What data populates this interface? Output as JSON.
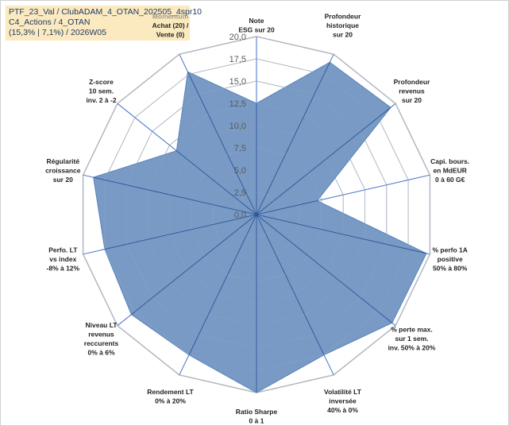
{
  "info": {
    "line1": "PTF_23_Val / ClubADAM_4_OTAN_202505_4spr10",
    "line2": "C4_Actions / 4_OTAN",
    "line3": "(15,3% | 7,1%) / 2026W05"
  },
  "chart_data": {
    "type": "radar",
    "rmin": 0,
    "rmax": 20,
    "ticks": [
      "0,0",
      "2,5",
      "5,0",
      "7,5",
      "10,0",
      "12,5",
      "15,0",
      "17,5",
      "20,0"
    ],
    "tick_values": [
      0,
      2.5,
      5,
      7.5,
      10,
      12.5,
      15,
      17.5,
      20
    ],
    "fill_color": "#5a84b8",
    "grid_color": "#bfbfbf",
    "axis_color": "#4472c4",
    "axes": [
      {
        "lines": [
          "Note",
          "ESG sur 20"
        ],
        "value": 12.5
      },
      {
        "lines": [
          "Profondeur",
          "historique",
          "sur 20"
        ],
        "value": 19
      },
      {
        "lines": [
          "Profondeur",
          "revenus",
          "sur 20"
        ],
        "value": 19.3
      },
      {
        "lines": [
          "Capi. bours.",
          "en MdEUR",
          "0 à 60 G€"
        ],
        "value": 7
      },
      {
        "lines": [
          "% perfo 1A",
          "positive",
          "50% à 80%"
        ],
        "value": 19.6
      },
      {
        "lines": [
          "% perte max.",
          "sur 1 sem.",
          "inv. 50% à 20%"
        ],
        "value": 19.5
      },
      {
        "lines": [
          "Volatilité LT",
          "inversée",
          "40% à 0%"
        ],
        "value": 17.5
      },
      {
        "lines": [
          "Ratio Sharpe",
          "0 à 1"
        ],
        "value": 20
      },
      {
        "lines": [
          "Rendement LT",
          "0% à 20%"
        ],
        "value": 17.5
      },
      {
        "lines": [
          "Niveau LT",
          "revenus",
          "reccurents",
          "0% à 6%"
        ],
        "value": 18
      },
      {
        "lines": [
          "Perfo. LT",
          "vs index",
          "-8% à 12%"
        ],
        "value": 17.5
      },
      {
        "lines": [
          "Régularité",
          "croissance",
          "sur 20"
        ],
        "value": 18.8
      },
      {
        "lines": [
          "Z-score",
          "10 sem.",
          "inv. 2 à -2"
        ],
        "value": 11.5
      },
      {
        "lines": [
          "Momentum",
          "Achat (20) /",
          "Vente (0)"
        ],
        "value": 17.8,
        "muted_lines": 1
      }
    ]
  }
}
